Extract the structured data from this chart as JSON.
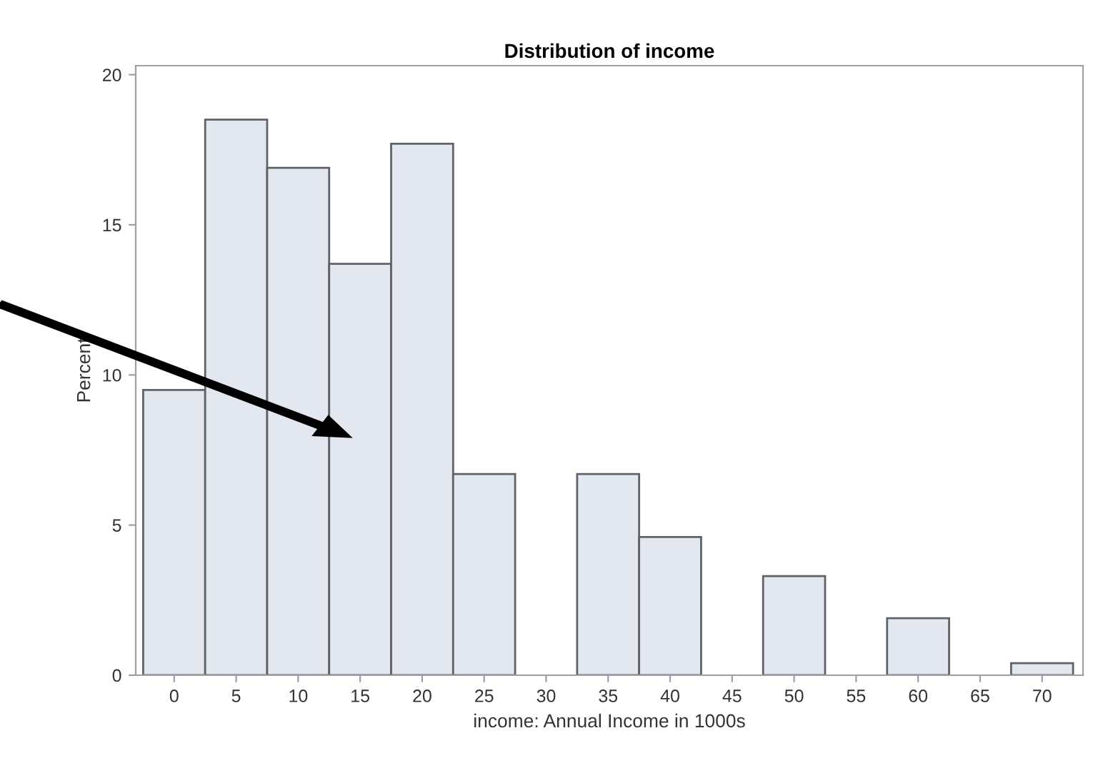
{
  "chart_data": {
    "type": "histogram",
    "title": "Distribution of income",
    "xlabel": "income: Annual Income in 1000s",
    "ylabel": "Percent",
    "bins": [
      -2.5,
      2.5,
      7.5,
      12.5,
      17.5,
      22.5,
      27.5,
      32.5,
      37.5,
      42.5,
      47.5,
      52.5,
      57.5,
      62.5,
      67.5,
      72.5
    ],
    "values": [
      9.5,
      18.5,
      16.9,
      13.7,
      17.7,
      6.7,
      0,
      6.7,
      4.6,
      0,
      3.3,
      0,
      1.9,
      0,
      0.4
    ],
    "color": "#e3e7f0",
    "xlim": [
      -3.1,
      73.3
    ],
    "ylim": [
      0,
      20.3
    ],
    "xticks": [
      0,
      5,
      10,
      15,
      20,
      25,
      30,
      35,
      40,
      45,
      50,
      55,
      60,
      65,
      70
    ],
    "yticks": [
      0,
      5,
      10,
      15,
      20
    ],
    "grid": false,
    "legend": false
  }
}
